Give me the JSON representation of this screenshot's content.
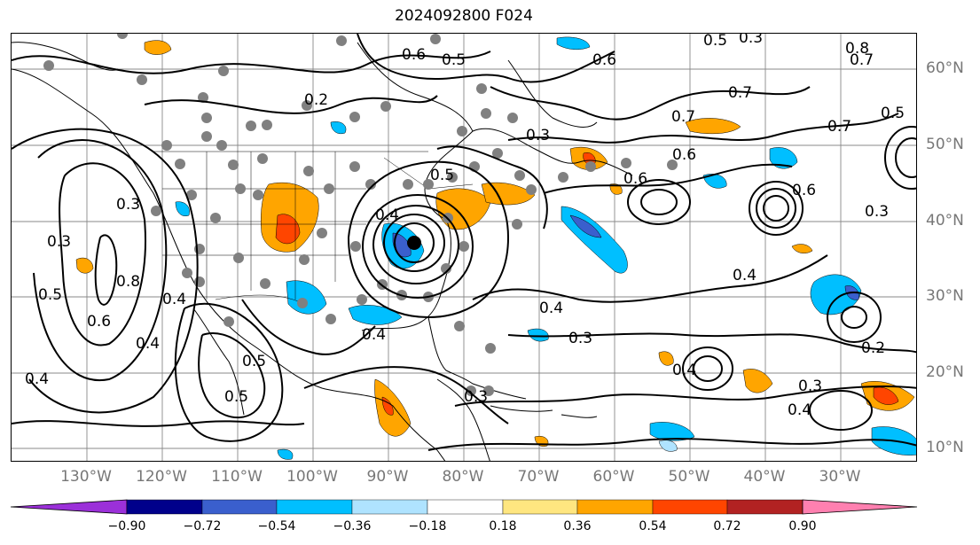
{
  "title": "2024092800 F024",
  "lat_labels": [
    "60°N",
    "50°N",
    "40°N",
    "30°N",
    "20°N",
    "10°N"
  ],
  "lon_labels": [
    "130°W",
    "120°W",
    "110°W",
    "100°W",
    "90°W",
    "80°W",
    "70°W",
    "60°W",
    "50°W",
    "40°W",
    "30°W"
  ],
  "colorbar": {
    "ticks": [
      "−0.90",
      "−0.72",
      "−0.54",
      "−0.36",
      "−0.18",
      "0.18",
      "0.36",
      "0.54",
      "0.72",
      "0.90"
    ],
    "colors": [
      "#9b30d9",
      "#00008b",
      "#3a5fcd",
      "#00bfff",
      "#afe3ff",
      "#ffffff",
      "#ffe680",
      "#ffa500",
      "#ff4500",
      "#b22222",
      "#ff80b0"
    ]
  },
  "contour_labels": [
    "0.6",
    "0.5",
    "0.2",
    "0.4",
    "0.3",
    "0.6",
    "0.5",
    "0.7",
    "0.7",
    "0.6",
    "0.6",
    "0.8",
    "0.7",
    "0.5",
    "0.7",
    "0.4",
    "0.3",
    "0.5",
    "0.4",
    "0.3",
    "0.4",
    "0.4",
    "0.2",
    "0.3",
    "0.4",
    "0.3",
    "0.5",
    "0.4",
    "0.3",
    "0.3",
    "0.5",
    "0.8",
    "0.4",
    "0.6",
    "0.5",
    "0.6",
    "0.4",
    "0.3"
  ]
}
